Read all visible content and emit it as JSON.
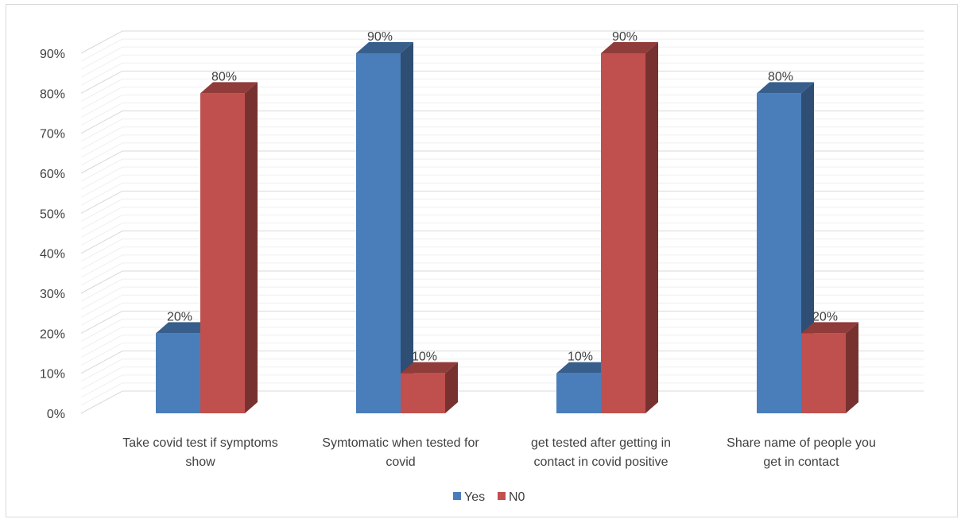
{
  "chart_data": {
    "type": "bar",
    "title": "",
    "xlabel": "",
    "ylabel": "",
    "ylim": [
      0,
      90
    ],
    "y_ticks": [
      "0%",
      "10%",
      "20%",
      "30%",
      "40%",
      "50%",
      "60%",
      "70%",
      "80%",
      "90%"
    ],
    "y_unit": "%",
    "three_d": true,
    "grid": true,
    "legend_position": "bottom",
    "categories": [
      [
        "Take covid test if symptoms",
        "show"
      ],
      [
        "Symtomatic when tested for",
        "covid"
      ],
      [
        "get tested after getting in",
        "contact in covid positive"
      ],
      [
        "Share name of people you",
        "get in contact"
      ]
    ],
    "series": [
      {
        "name": "Yes",
        "color": "#4a7ebb",
        "values": [
          20,
          90,
          10,
          80
        ],
        "labels": [
          "20%",
          "90%",
          "10%",
          "80%"
        ]
      },
      {
        "name": "N0",
        "color": "#c0504d",
        "values": [
          80,
          10,
          90,
          20
        ],
        "labels": [
          "80%",
          "10%",
          "90%",
          "20%"
        ]
      }
    ]
  }
}
